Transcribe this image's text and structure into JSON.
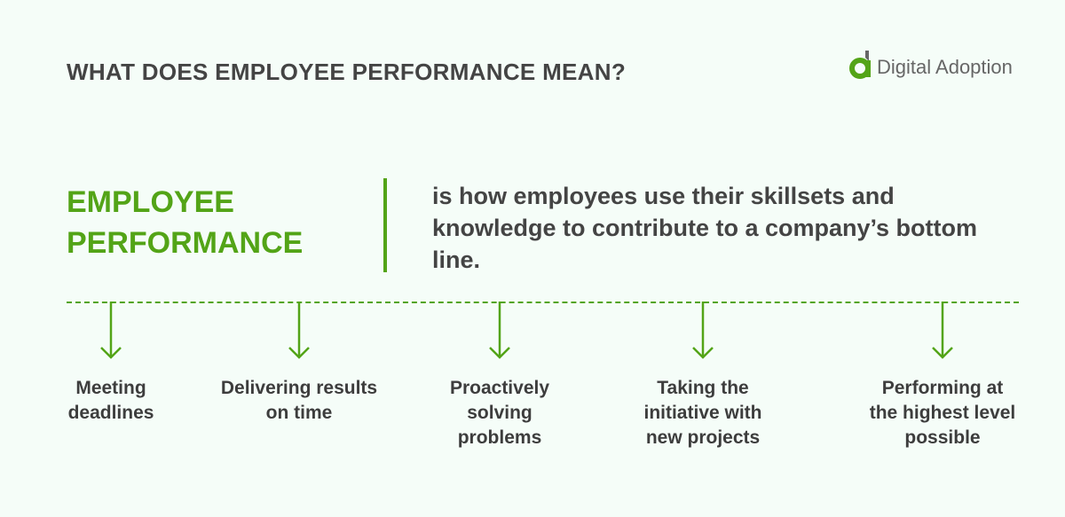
{
  "header": {
    "title": "WHAT DOES EMPLOYEE PERFORMANCE MEAN?"
  },
  "logo": {
    "text": "Digital Adoption",
    "mark": "a"
  },
  "definition": {
    "term_line1": "EMPLOYEE",
    "term_line2": "PERFORMANCE",
    "text": "is how employees use their skillsets and knowledge to contribute to a company’s bottom line."
  },
  "items": [
    {
      "label": "Meeting deadlines"
    },
    {
      "label": "Delivering results on time"
    },
    {
      "label": "Proactively solving problems"
    },
    {
      "label": "Taking the initiative with new projects"
    },
    {
      "label": "Performing at the highest level possible"
    }
  ],
  "colors": {
    "accent": "#53a417",
    "text": "#444444",
    "background": "#f5fdf8"
  },
  "icons": [
    "arrow-down-icon"
  ]
}
